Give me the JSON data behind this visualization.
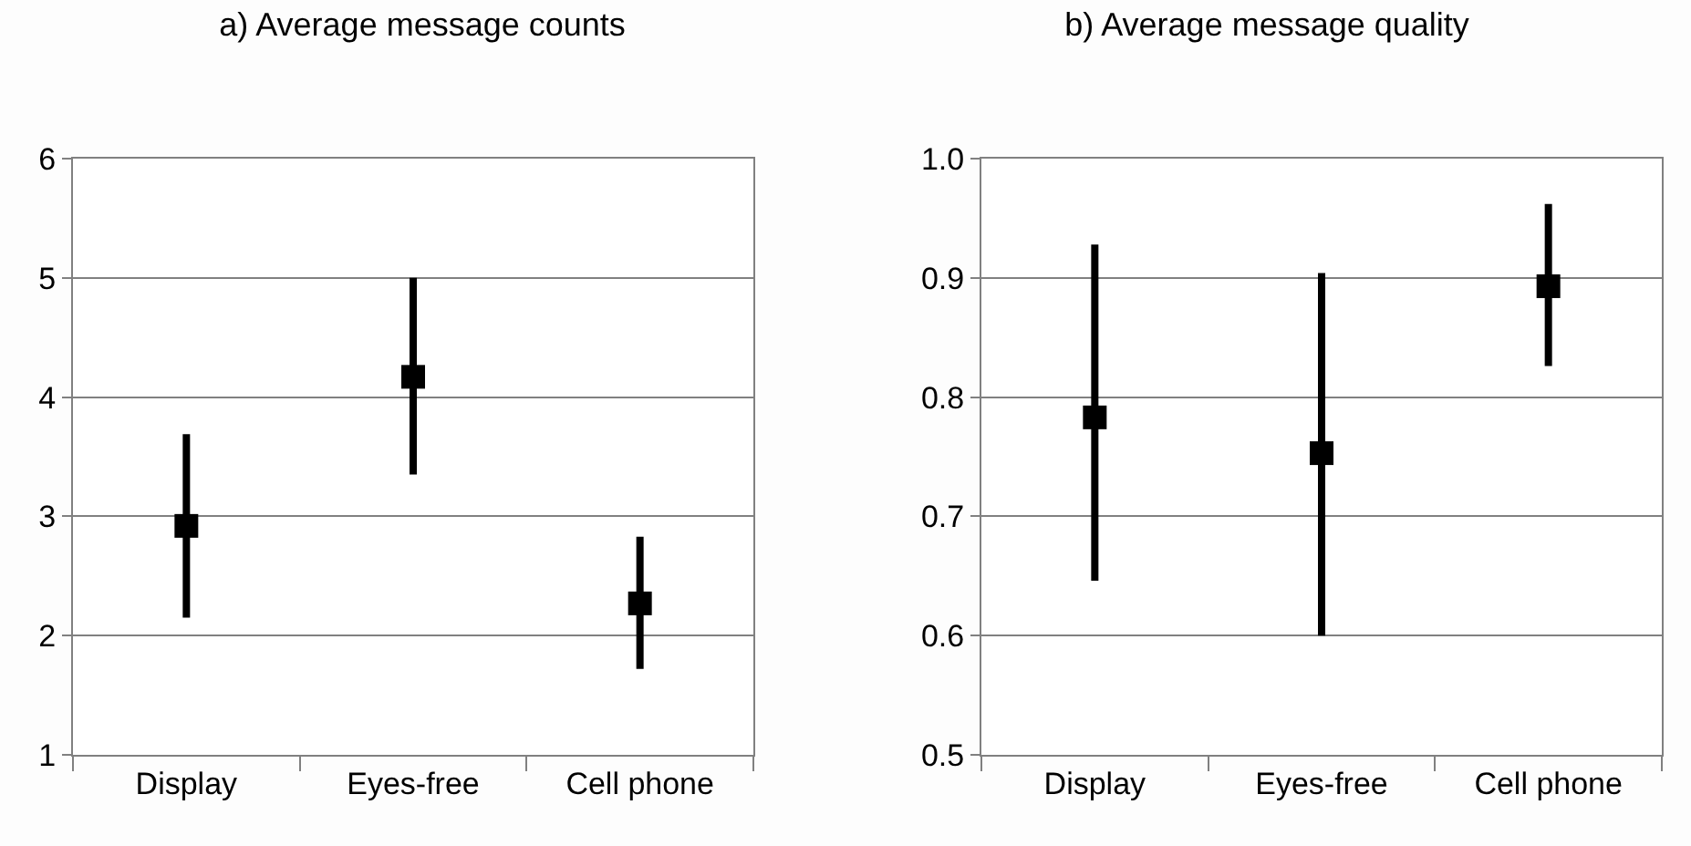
{
  "chart_data": [
    {
      "type": "scatter",
      "title": "a) Average message counts",
      "categories": [
        "Display",
        "Eyes-free",
        "Cell phone"
      ],
      "series": [
        {
          "color": "#000000",
          "values": [
            2.92,
            4.17,
            2.27
          ],
          "errors": [
            [
              2.15,
              3.69
            ],
            [
              3.35,
              5.0
            ],
            [
              1.72,
              2.83
            ]
          ]
        }
      ],
      "ylim": [
        1,
        6
      ],
      "yticks": [
        1,
        2,
        3,
        4,
        5,
        6
      ],
      "grid": "y",
      "marker": "square"
    },
    {
      "type": "scatter",
      "title": "b) Average message quality",
      "categories": [
        "Display",
        "Eyes-free",
        "Cell phone"
      ],
      "series": [
        {
          "color": "#000000",
          "values": [
            0.783,
            0.753,
            0.893
          ],
          "errors": [
            [
              0.646,
              0.928
            ],
            [
              0.6,
              0.904
            ],
            [
              0.826,
              0.962
            ]
          ]
        }
      ],
      "ylim": [
        0.5,
        1.0
      ],
      "yticks": [
        0.5,
        0.6,
        0.7,
        0.8,
        0.9,
        {
          "value": 1.0,
          "label": "1.0"
        }
      ],
      "grid": "y",
      "marker": "square"
    }
  ]
}
